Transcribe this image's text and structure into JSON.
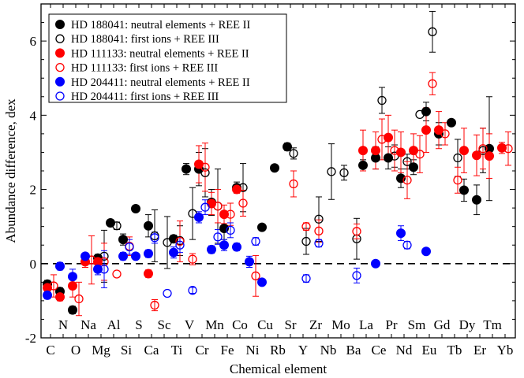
{
  "chart_data": {
    "type": "scatter",
    "xlabel": "Chemical element",
    "ylabel": "Abundance difference, dex",
    "ylim": [
      -2,
      7
    ],
    "yticks": [
      -2,
      0,
      2,
      4,
      6
    ],
    "reference_line": 0,
    "legend_position": "top-left",
    "elements": [
      "C",
      "N",
      "O",
      "Na",
      "Mg",
      "Al",
      "Si",
      "S",
      "Ca",
      "Sc",
      "Ti",
      "V",
      "Cr",
      "Mn",
      "Fe",
      "Co",
      "Ni",
      "Cu",
      "Rb",
      "Sr",
      "Y",
      "Zr",
      "Nb",
      "Mo",
      "Ba",
      "La",
      "Ce",
      "Pr",
      "Nd",
      "Sm",
      "Eu",
      "Gd",
      "Tb",
      "Dy",
      "Er",
      "Tm",
      "Yb"
    ],
    "bottom_row": [
      "C",
      "O",
      "Mg",
      "Si",
      "Ca",
      "Ti",
      "Cr",
      "Fe",
      "Ni",
      "Rb",
      "Y",
      "Nb",
      "Ba",
      "Ce",
      "Nd",
      "Eu",
      "Tb",
      "Er",
      "Yb"
    ],
    "top_row": [
      "N",
      "Na",
      "Al",
      "S",
      "Sc",
      "V",
      "Mn",
      "Co",
      "Cu",
      "Sr",
      "Zr",
      "Mo",
      "La",
      "Pr",
      "Sm",
      "Gd",
      "Dy",
      "Tm"
    ],
    "series": [
      {
        "name": "HD 188041: neutral elements + REE II",
        "color": "#000000",
        "filled": true,
        "points": [
          [
            "C",
            -0.55,
            0.1
          ],
          [
            "N",
            -0.75,
            0.1
          ],
          [
            "O",
            -1.25,
            0.1
          ],
          [
            "Mg",
            0.15,
            0.1
          ],
          [
            "Al",
            1.1,
            0.08
          ],
          [
            "Si",
            0.65,
            0.15
          ],
          [
            "S",
            1.48,
            0
          ],
          [
            "Ca",
            1.02,
            0.3
          ],
          [
            "Ti",
            0.67,
            0.1
          ],
          [
            "V",
            2.55,
            0.15
          ],
          [
            "Cr",
            2.55,
            0.45
          ],
          [
            "Mn",
            1.65,
            0.35
          ],
          [
            "Fe",
            0.95,
            0.3
          ],
          [
            "Co",
            2.05,
            0.15
          ],
          [
            "Cu",
            0.98,
            0
          ],
          [
            "Rb",
            2.58,
            0
          ],
          [
            "Sr",
            3.15,
            0.1
          ],
          [
            "La",
            2.65,
            0.15
          ],
          [
            "Ce",
            2.85,
            0.3
          ],
          [
            "Pr",
            2.85,
            0.3
          ],
          [
            "Nd",
            2.3,
            0.25
          ],
          [
            "Sm",
            2.6,
            0.2
          ],
          [
            "Eu",
            4.1,
            0.25
          ],
          [
            "Gd",
            3.5,
            0.3
          ],
          [
            "Tb",
            3.8,
            0
          ],
          [
            "Dy",
            1.98,
            0.3
          ],
          [
            "Er",
            1.72,
            0.4
          ],
          [
            "Tm",
            3.1,
            1.4
          ]
        ]
      },
      {
        "name": "HD 188041: first ions + REE III",
        "color": "#000000",
        "filled": false,
        "points": [
          [
            "Mg",
            0.2,
            0.7
          ],
          [
            "Al",
            1.02,
            0.1
          ],
          [
            "Ca",
            0.75,
            0.7
          ],
          [
            "Sc",
            0.57,
            0.7
          ],
          [
            "Ti",
            0.62,
            0.4
          ],
          [
            "V",
            1.35,
            0.7
          ],
          [
            "Cr",
            2.45,
            0.65
          ],
          [
            "Mn",
            1.55,
            1
          ],
          [
            "Co",
            2.05,
            0.65
          ],
          [
            "Sr",
            2.97,
            0.15
          ],
          [
            "Y",
            0.6,
            0.35
          ],
          [
            "Zr",
            1.2,
            0.6
          ],
          [
            "Nb",
            2.48,
            0.75
          ],
          [
            "Mo",
            2.45,
            0.2
          ],
          [
            "Ba",
            0.67,
            0.55
          ],
          [
            "Ce",
            4.4,
            0.35
          ],
          [
            "Pr",
            2.9,
            0.3
          ],
          [
            "Nd",
            2.75,
            0.2
          ],
          [
            "Sm",
            4.02,
            0
          ],
          [
            "Eu",
            6.25,
            0.55
          ],
          [
            "Tb",
            2.85,
            0.5
          ],
          [
            "Er",
            3.05,
            0.6
          ]
        ]
      },
      {
        "name": "HD 111133: neutral elements + REE II",
        "color": "#ff0000",
        "filled": true,
        "points": [
          [
            "C",
            -0.65,
            0.15
          ],
          [
            "N",
            -0.9,
            0.1
          ],
          [
            "O",
            -0.6,
            0.3
          ],
          [
            "Na",
            0.05,
            0.15
          ],
          [
            "Mg",
            0.05,
            0.15
          ],
          [
            "Ca",
            -0.27,
            0.1
          ],
          [
            "Cr",
            2.68,
            0.5
          ],
          [
            "Mn",
            1.62,
            0.3
          ],
          [
            "Fe",
            1.33,
            0.25
          ],
          [
            "Co",
            2.0,
            0.1
          ],
          [
            "La",
            3.05,
            0.55
          ],
          [
            "Ce",
            3.05,
            0.5
          ],
          [
            "Pr",
            3.4,
            0.6
          ],
          [
            "Nd",
            3.0,
            0.55
          ],
          [
            "Sm",
            3.05,
            0.45
          ],
          [
            "Eu",
            3.6,
            0.6
          ],
          [
            "Gd",
            3.6,
            0.5
          ],
          [
            "Dy",
            3.05,
            0.6
          ],
          [
            "Er",
            2.92,
            0.55
          ],
          [
            "Tm",
            2.9,
            0.6
          ],
          [
            "Yb",
            3.12,
            0.15
          ]
        ]
      },
      {
        "name": "HD 111133: first ions + REE III",
        "color": "#ff0000",
        "filled": false,
        "points": [
          [
            "C",
            -0.6,
            0.3
          ],
          [
            "O",
            -0.95,
            0.45
          ],
          [
            "Na",
            0.1,
            0.65
          ],
          [
            "Mg",
            0.05,
            0.5
          ],
          [
            "Al",
            -0.28,
            0
          ],
          [
            "Si",
            0.47,
            0.25
          ],
          [
            "Ca",
            -1.12,
            0.15
          ],
          [
            "Ti",
            0.6,
            0.55
          ],
          [
            "V",
            0.12,
            0.15
          ],
          [
            "Cr",
            2.6,
            0.65
          ],
          [
            "Mn",
            1.55,
            0.45
          ],
          [
            "Fe",
            1.33,
            0.3
          ],
          [
            "Co",
            1.63,
            0.35
          ],
          [
            "Ni",
            -0.33,
            0.55
          ],
          [
            "Sr",
            2.15,
            0.35
          ],
          [
            "Y",
            1.0,
            0.1
          ],
          [
            "Zr",
            0.88,
            0.3
          ],
          [
            "Ba",
            0.87,
            0.2
          ],
          [
            "Ce",
            3.35,
            0.55
          ],
          [
            "Pr",
            3.05,
            0.55
          ],
          [
            "Nd",
            2.25,
            0.5
          ],
          [
            "Sm",
            2.95,
            0.5
          ],
          [
            "Eu",
            4.85,
            0.3
          ],
          [
            "Gd",
            3.5,
            0.3
          ],
          [
            "Tb",
            2.25,
            0.35
          ],
          [
            "Er",
            3.1,
            0.55
          ],
          [
            "Yb",
            3.1,
            0.45
          ]
        ]
      },
      {
        "name": "HD 204411: neutral elements + REE II",
        "color": "#0000ff",
        "filled": true,
        "points": [
          [
            "C",
            -0.85,
            0.1
          ],
          [
            "N",
            -0.07,
            0.1
          ],
          [
            "O",
            -0.35,
            0.2
          ],
          [
            "Na",
            0.2,
            0
          ],
          [
            "Mg",
            -0.15,
            0.15
          ],
          [
            "Si",
            0.2,
            0.1
          ],
          [
            "S",
            0.2,
            0
          ],
          [
            "Ca",
            0.27,
            0.1
          ],
          [
            "Ti",
            0.3,
            0.15
          ],
          [
            "Cr",
            1.25,
            0.15
          ],
          [
            "Mn",
            0.38,
            0.1
          ],
          [
            "Fe",
            0.5,
            0.15
          ],
          [
            "Co",
            0.45,
            0.1
          ],
          [
            "Ni",
            0.05,
            0.15
          ],
          [
            "Cu",
            -0.5,
            0
          ],
          [
            "Ce",
            0.0,
            0
          ],
          [
            "Nd",
            0.82,
            0.2
          ],
          [
            "Eu",
            0.33,
            0
          ]
        ]
      },
      {
        "name": "HD 204411: first ions + REE III",
        "color": "#0000ff",
        "filled": false,
        "points": [
          [
            "Mg",
            -0.15,
            0.5
          ],
          [
            "Si",
            0.45,
            0.2
          ],
          [
            "Ca",
            0.7,
            0.15
          ],
          [
            "Sc",
            -0.8,
            0
          ],
          [
            "Ti",
            0.5,
            0.2
          ],
          [
            "V",
            -0.72,
            0.08
          ],
          [
            "Cr",
            1.52,
            0.2
          ],
          [
            "Mn",
            0.72,
            0.2
          ],
          [
            "Fe",
            0.9,
            0.2
          ],
          [
            "Ni",
            0.6,
            0.1
          ],
          [
            "Y",
            -0.4,
            0.1
          ],
          [
            "Zr",
            0.55,
            0.1
          ],
          [
            "Ba",
            -0.32,
            0.2
          ],
          [
            "Nd",
            0.5,
            0.1
          ]
        ]
      }
    ]
  }
}
